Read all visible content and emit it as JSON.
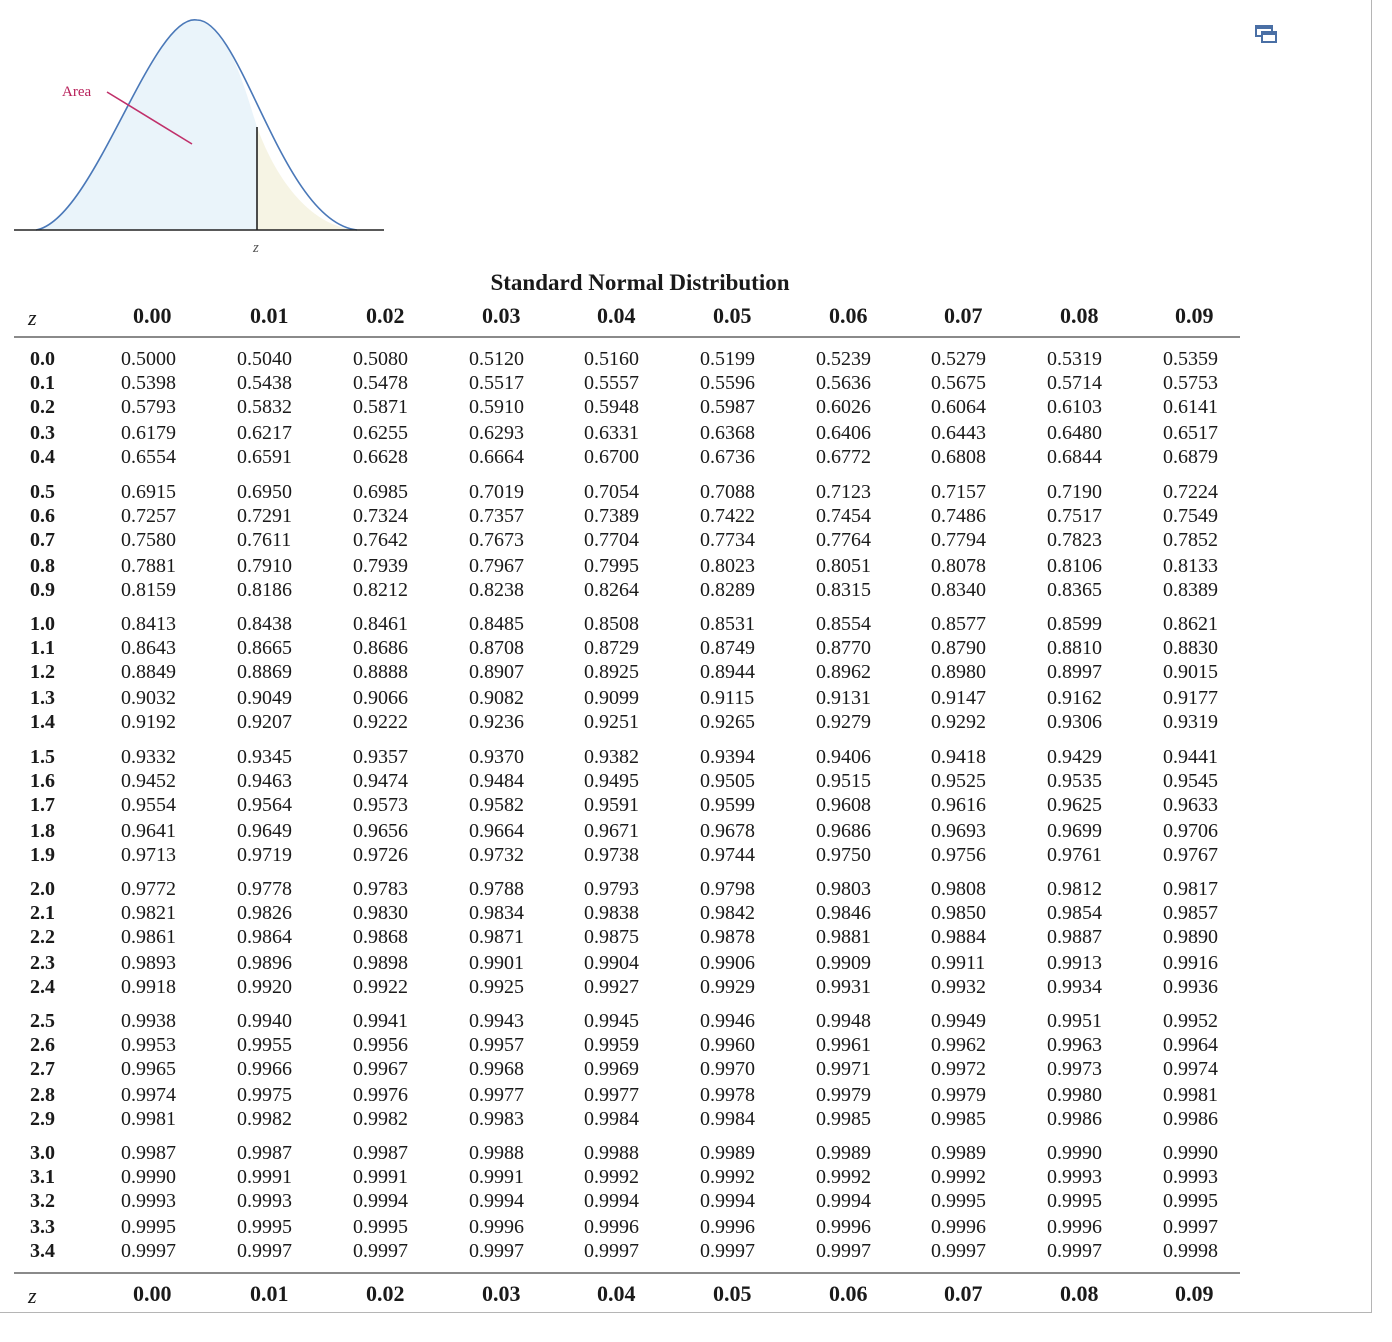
{
  "diagram": {
    "area_label": "Area",
    "z_label": "z"
  },
  "title": "Standard Normal Distribution",
  "z_header": "z",
  "columns": [
    "0.00",
    "0.01",
    "0.02",
    "0.03",
    "0.04",
    "0.05",
    "0.06",
    "0.07",
    "0.08",
    "0.09"
  ],
  "rows": [
    {
      "z": "0.0",
      "v": [
        "0.5000",
        "0.5040",
        "0.5080",
        "0.5120",
        "0.5160",
        "0.5199",
        "0.5239",
        "0.5279",
        "0.5319",
        "0.5359"
      ]
    },
    {
      "z": "0.1",
      "v": [
        "0.5398",
        "0.5438",
        "0.5478",
        "0.5517",
        "0.5557",
        "0.5596",
        "0.5636",
        "0.5675",
        "0.5714",
        "0.5753"
      ]
    },
    {
      "z": "0.2",
      "v": [
        "0.5793",
        "0.5832",
        "0.5871",
        "0.5910",
        "0.5948",
        "0.5987",
        "0.6026",
        "0.6064",
        "0.6103",
        "0.6141"
      ]
    },
    {
      "z": "0.3",
      "v": [
        "0.6179",
        "0.6217",
        "0.6255",
        "0.6293",
        "0.6331",
        "0.6368",
        "0.6406",
        "0.6443",
        "0.6480",
        "0.6517"
      ]
    },
    {
      "z": "0.4",
      "v": [
        "0.6554",
        "0.6591",
        "0.6628",
        "0.6664",
        "0.6700",
        "0.6736",
        "0.6772",
        "0.6808",
        "0.6844",
        "0.6879"
      ]
    },
    {
      "z": "0.5",
      "v": [
        "0.6915",
        "0.6950",
        "0.6985",
        "0.7019",
        "0.7054",
        "0.7088",
        "0.7123",
        "0.7157",
        "0.7190",
        "0.7224"
      ]
    },
    {
      "z": "0.6",
      "v": [
        "0.7257",
        "0.7291",
        "0.7324",
        "0.7357",
        "0.7389",
        "0.7422",
        "0.7454",
        "0.7486",
        "0.7517",
        "0.7549"
      ]
    },
    {
      "z": "0.7",
      "v": [
        "0.7580",
        "0.7611",
        "0.7642",
        "0.7673",
        "0.7704",
        "0.7734",
        "0.7764",
        "0.7794",
        "0.7823",
        "0.7852"
      ]
    },
    {
      "z": "0.8",
      "v": [
        "0.7881",
        "0.7910",
        "0.7939",
        "0.7967",
        "0.7995",
        "0.8023",
        "0.8051",
        "0.8078",
        "0.8106",
        "0.8133"
      ]
    },
    {
      "z": "0.9",
      "v": [
        "0.8159",
        "0.8186",
        "0.8212",
        "0.8238",
        "0.8264",
        "0.8289",
        "0.8315",
        "0.8340",
        "0.8365",
        "0.8389"
      ]
    },
    {
      "z": "1.0",
      "v": [
        "0.8413",
        "0.8438",
        "0.8461",
        "0.8485",
        "0.8508",
        "0.8531",
        "0.8554",
        "0.8577",
        "0.8599",
        "0.8621"
      ]
    },
    {
      "z": "1.1",
      "v": [
        "0.8643",
        "0.8665",
        "0.8686",
        "0.8708",
        "0.8729",
        "0.8749",
        "0.8770",
        "0.8790",
        "0.8810",
        "0.8830"
      ]
    },
    {
      "z": "1.2",
      "v": [
        "0.8849",
        "0.8869",
        "0.8888",
        "0.8907",
        "0.8925",
        "0.8944",
        "0.8962",
        "0.8980",
        "0.8997",
        "0.9015"
      ]
    },
    {
      "z": "1.3",
      "v": [
        "0.9032",
        "0.9049",
        "0.9066",
        "0.9082",
        "0.9099",
        "0.9115",
        "0.9131",
        "0.9147",
        "0.9162",
        "0.9177"
      ]
    },
    {
      "z": "1.4",
      "v": [
        "0.9192",
        "0.9207",
        "0.9222",
        "0.9236",
        "0.9251",
        "0.9265",
        "0.9279",
        "0.9292",
        "0.9306",
        "0.9319"
      ]
    },
    {
      "z": "1.5",
      "v": [
        "0.9332",
        "0.9345",
        "0.9357",
        "0.9370",
        "0.9382",
        "0.9394",
        "0.9406",
        "0.9418",
        "0.9429",
        "0.9441"
      ]
    },
    {
      "z": "1.6",
      "v": [
        "0.9452",
        "0.9463",
        "0.9474",
        "0.9484",
        "0.9495",
        "0.9505",
        "0.9515",
        "0.9525",
        "0.9535",
        "0.9545"
      ]
    },
    {
      "z": "1.7",
      "v": [
        "0.9554",
        "0.9564",
        "0.9573",
        "0.9582",
        "0.9591",
        "0.9599",
        "0.9608",
        "0.9616",
        "0.9625",
        "0.9633"
      ]
    },
    {
      "z": "1.8",
      "v": [
        "0.9641",
        "0.9649",
        "0.9656",
        "0.9664",
        "0.9671",
        "0.9678",
        "0.9686",
        "0.9693",
        "0.9699",
        "0.9706"
      ]
    },
    {
      "z": "1.9",
      "v": [
        "0.9713",
        "0.9719",
        "0.9726",
        "0.9732",
        "0.9738",
        "0.9744",
        "0.9750",
        "0.9756",
        "0.9761",
        "0.9767"
      ]
    },
    {
      "z": "2.0",
      "v": [
        "0.9772",
        "0.9778",
        "0.9783",
        "0.9788",
        "0.9793",
        "0.9798",
        "0.9803",
        "0.9808",
        "0.9812",
        "0.9817"
      ]
    },
    {
      "z": "2.1",
      "v": [
        "0.9821",
        "0.9826",
        "0.9830",
        "0.9834",
        "0.9838",
        "0.9842",
        "0.9846",
        "0.9850",
        "0.9854",
        "0.9857"
      ]
    },
    {
      "z": "2.2",
      "v": [
        "0.9861",
        "0.9864",
        "0.9868",
        "0.9871",
        "0.9875",
        "0.9878",
        "0.9881",
        "0.9884",
        "0.9887",
        "0.9890"
      ]
    },
    {
      "z": "2.3",
      "v": [
        "0.9893",
        "0.9896",
        "0.9898",
        "0.9901",
        "0.9904",
        "0.9906",
        "0.9909",
        "0.9911",
        "0.9913",
        "0.9916"
      ]
    },
    {
      "z": "2.4",
      "v": [
        "0.9918",
        "0.9920",
        "0.9922",
        "0.9925",
        "0.9927",
        "0.9929",
        "0.9931",
        "0.9932",
        "0.9934",
        "0.9936"
      ]
    },
    {
      "z": "2.5",
      "v": [
        "0.9938",
        "0.9940",
        "0.9941",
        "0.9943",
        "0.9945",
        "0.9946",
        "0.9948",
        "0.9949",
        "0.9951",
        "0.9952"
      ]
    },
    {
      "z": "2.6",
      "v": [
        "0.9953",
        "0.9955",
        "0.9956",
        "0.9957",
        "0.9959",
        "0.9960",
        "0.9961",
        "0.9962",
        "0.9963",
        "0.9964"
      ]
    },
    {
      "z": "2.7",
      "v": [
        "0.9965",
        "0.9966",
        "0.9967",
        "0.9968",
        "0.9969",
        "0.9970",
        "0.9971",
        "0.9972",
        "0.9973",
        "0.9974"
      ]
    },
    {
      "z": "2.8",
      "v": [
        "0.9974",
        "0.9975",
        "0.9976",
        "0.9977",
        "0.9977",
        "0.9978",
        "0.9979",
        "0.9979",
        "0.9980",
        "0.9981"
      ]
    },
    {
      "z": "2.9",
      "v": [
        "0.9981",
        "0.9982",
        "0.9982",
        "0.9983",
        "0.9984",
        "0.9984",
        "0.9985",
        "0.9985",
        "0.9986",
        "0.9986"
      ]
    },
    {
      "z": "3.0",
      "v": [
        "0.9987",
        "0.9987",
        "0.9987",
        "0.9988",
        "0.9988",
        "0.9989",
        "0.9989",
        "0.9989",
        "0.9990",
        "0.9990"
      ]
    },
    {
      "z": "3.1",
      "v": [
        "0.9990",
        "0.9991",
        "0.9991",
        "0.9991",
        "0.9992",
        "0.9992",
        "0.9992",
        "0.9992",
        "0.9993",
        "0.9993"
      ]
    },
    {
      "z": "3.2",
      "v": [
        "0.9993",
        "0.9993",
        "0.9994",
        "0.9994",
        "0.9994",
        "0.9994",
        "0.9994",
        "0.9995",
        "0.9995",
        "0.9995"
      ]
    },
    {
      "z": "3.3",
      "v": [
        "0.9995",
        "0.9995",
        "0.9995",
        "0.9996",
        "0.9996",
        "0.9996",
        "0.9996",
        "0.9996",
        "0.9996",
        "0.9997"
      ]
    },
    {
      "z": "3.4",
      "v": [
        "0.9997",
        "0.9997",
        "0.9997",
        "0.9997",
        "0.9997",
        "0.9997",
        "0.9997",
        "0.9997",
        "0.9997",
        "0.9998"
      ]
    }
  ],
  "colors": {
    "curve_stroke": "#4a78b8",
    "left_fill": "#eaf4fa",
    "right_fill": "#f6f4e4",
    "pointer": "#c0306a"
  },
  "icons": {
    "popout": "popout-icon"
  }
}
